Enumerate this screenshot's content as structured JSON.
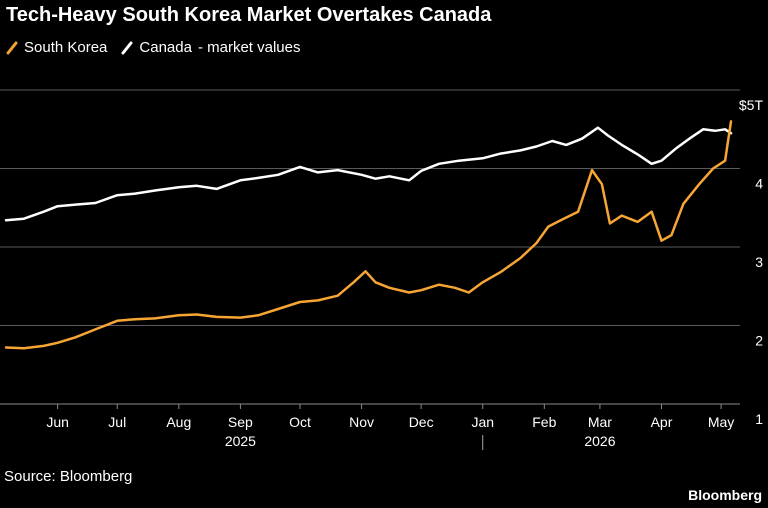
{
  "title": "Tech-Heavy South Korea Market Overtakes Canada",
  "source": "Source: Bloomberg",
  "brand": "Bloomberg",
  "legend_suffix": "- market values",
  "chart_data": {
    "type": "line",
    "title": "Tech-Heavy South Korea Market Overtakes Canada",
    "xlabel": "",
    "ylabel": "",
    "ylim": [
      1,
      5
    ],
    "yticks": [
      1,
      2,
      3,
      4,
      5
    ],
    "ytick_labels": [
      "1",
      "2",
      "3",
      "4",
      "$5T"
    ],
    "xlim": [
      "2025-05-06",
      "2026-05-08"
    ],
    "x_month_labels": [
      {
        "label": "Jun",
        "date": "2025-06-01"
      },
      {
        "label": "Jul",
        "date": "2025-07-01"
      },
      {
        "label": "Aug",
        "date": "2025-08-01"
      },
      {
        "label": "Sep",
        "date": "2025-09-01"
      },
      {
        "label": "Oct",
        "date": "2025-10-01"
      },
      {
        "label": "Nov",
        "date": "2025-11-01"
      },
      {
        "label": "Dec",
        "date": "2025-12-01"
      },
      {
        "label": "Jan",
        "date": "2026-01-01"
      },
      {
        "label": "Feb",
        "date": "2026-02-01"
      },
      {
        "label": "Mar",
        "date": "2026-03-01"
      },
      {
        "label": "Apr",
        "date": "2026-04-01"
      },
      {
        "label": "May",
        "date": "2026-05-01"
      }
    ],
    "x_year_labels": [
      {
        "label": "2025",
        "date": "2025-09-01"
      },
      {
        "label": "2026",
        "date": "2026-03-01"
      }
    ],
    "legend_position": "top-left",
    "grid": "horizontal",
    "series": [
      {
        "name": "South Korea",
        "color": "#f7a535",
        "points": [
          [
            "2025-05-06",
            1.72
          ],
          [
            "2025-05-15",
            1.71
          ],
          [
            "2025-05-25",
            1.74
          ],
          [
            "2025-06-01",
            1.78
          ],
          [
            "2025-06-10",
            1.85
          ],
          [
            "2025-06-20",
            1.95
          ],
          [
            "2025-07-01",
            2.06
          ],
          [
            "2025-07-10",
            2.08
          ],
          [
            "2025-07-20",
            2.09
          ],
          [
            "2025-08-01",
            2.13
          ],
          [
            "2025-08-10",
            2.14
          ],
          [
            "2025-08-20",
            2.11
          ],
          [
            "2025-09-01",
            2.1
          ],
          [
            "2025-09-10",
            2.13
          ],
          [
            "2025-09-20",
            2.21
          ],
          [
            "2025-10-01",
            2.3
          ],
          [
            "2025-10-10",
            2.32
          ],
          [
            "2025-10-20",
            2.38
          ],
          [
            "2025-10-28",
            2.55
          ],
          [
            "2025-11-03",
            2.69
          ],
          [
            "2025-11-08",
            2.55
          ],
          [
            "2025-11-15",
            2.48
          ],
          [
            "2025-11-25",
            2.42
          ],
          [
            "2025-12-01",
            2.45
          ],
          [
            "2025-12-10",
            2.52
          ],
          [
            "2025-12-18",
            2.48
          ],
          [
            "2025-12-25",
            2.42
          ],
          [
            "2026-01-01",
            2.55
          ],
          [
            "2026-01-10",
            2.68
          ],
          [
            "2026-01-20",
            2.86
          ],
          [
            "2026-01-28",
            3.05
          ],
          [
            "2026-02-03",
            3.26
          ],
          [
            "2026-02-10",
            3.35
          ],
          [
            "2026-02-18",
            3.45
          ],
          [
            "2026-02-25",
            3.98
          ],
          [
            "2026-03-02",
            3.8
          ],
          [
            "2026-03-06",
            3.3
          ],
          [
            "2026-03-12",
            3.4
          ],
          [
            "2026-03-20",
            3.32
          ],
          [
            "2026-03-27",
            3.45
          ],
          [
            "2026-04-01",
            3.08
          ],
          [
            "2026-04-06",
            3.15
          ],
          [
            "2026-04-12",
            3.55
          ],
          [
            "2026-04-20",
            3.8
          ],
          [
            "2026-04-27",
            4.0
          ],
          [
            "2026-05-03",
            4.1
          ],
          [
            "2026-05-06",
            4.6
          ]
        ]
      },
      {
        "name": "Canada",
        "color": "#ffffff",
        "points": [
          [
            "2025-05-06",
            3.34
          ],
          [
            "2025-05-15",
            3.36
          ],
          [
            "2025-05-25",
            3.45
          ],
          [
            "2025-06-01",
            3.52
          ],
          [
            "2025-06-10",
            3.54
          ],
          [
            "2025-06-20",
            3.56
          ],
          [
            "2025-07-01",
            3.66
          ],
          [
            "2025-07-10",
            3.68
          ],
          [
            "2025-07-20",
            3.72
          ],
          [
            "2025-08-01",
            3.76
          ],
          [
            "2025-08-10",
            3.78
          ],
          [
            "2025-08-20",
            3.74
          ],
          [
            "2025-09-01",
            3.85
          ],
          [
            "2025-09-10",
            3.88
          ],
          [
            "2025-09-20",
            3.92
          ],
          [
            "2025-10-01",
            4.02
          ],
          [
            "2025-10-10",
            3.95
          ],
          [
            "2025-10-20",
            3.98
          ],
          [
            "2025-11-01",
            3.92
          ],
          [
            "2025-11-08",
            3.87
          ],
          [
            "2025-11-15",
            3.9
          ],
          [
            "2025-11-25",
            3.85
          ],
          [
            "2025-12-01",
            3.97
          ],
          [
            "2025-12-10",
            4.06
          ],
          [
            "2025-12-20",
            4.1
          ],
          [
            "2026-01-01",
            4.13
          ],
          [
            "2026-01-10",
            4.19
          ],
          [
            "2026-01-20",
            4.23
          ],
          [
            "2026-01-28",
            4.28
          ],
          [
            "2026-02-05",
            4.35
          ],
          [
            "2026-02-12",
            4.3
          ],
          [
            "2026-02-20",
            4.38
          ],
          [
            "2026-02-28",
            4.52
          ],
          [
            "2026-03-05",
            4.42
          ],
          [
            "2026-03-12",
            4.3
          ],
          [
            "2026-03-20",
            4.18
          ],
          [
            "2026-03-27",
            4.06
          ],
          [
            "2026-04-01",
            4.1
          ],
          [
            "2026-04-08",
            4.25
          ],
          [
            "2026-04-15",
            4.38
          ],
          [
            "2026-04-22",
            4.5
          ],
          [
            "2026-04-28",
            4.48
          ],
          [
            "2026-05-03",
            4.5
          ],
          [
            "2026-05-06",
            4.45
          ]
        ]
      }
    ]
  }
}
